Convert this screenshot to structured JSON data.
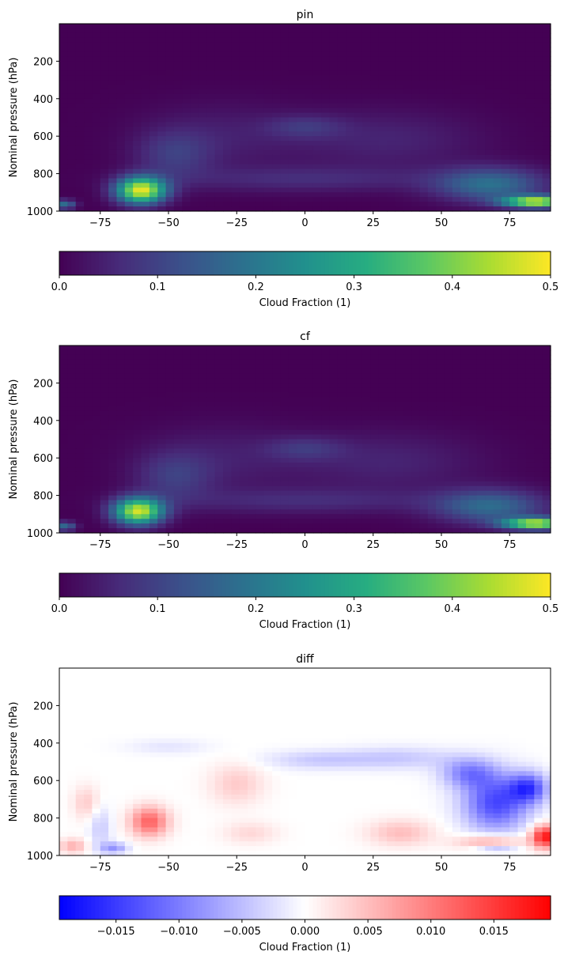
{
  "chart_data": [
    {
      "type": "heatmap",
      "title": "pin",
      "xlabel": "",
      "ylabel": "Nominal pressure (hPa)",
      "xlim": [
        -90,
        90
      ],
      "ylim": [
        1000,
        0
      ],
      "xticks": [
        -75,
        -50,
        -25,
        0,
        25,
        50,
        75
      ],
      "xtick_labels": [
        "−75",
        "−50",
        "−25",
        "0",
        "25",
        "50",
        "75"
      ],
      "yticks": [
        200,
        400,
        600,
        800,
        1000
      ],
      "ytick_labels": [
        "200",
        "400",
        "600",
        "800",
        "1000"
      ],
      "colormap": "viridis",
      "colorbar": {
        "label": "Cloud Fraction (1)",
        "range": [
          0,
          0.5
        ],
        "ticks": [
          0,
          0.1,
          0.2,
          0.3,
          0.4,
          0.5
        ],
        "tick_labels": [
          "0.0",
          "0.1",
          "0.2",
          "0.3",
          "0.4",
          "0.5"
        ]
      },
      "features": [
        {
          "lat": -60,
          "pressure": 890,
          "lat_width": 9,
          "p_width": 70,
          "value": 0.48
        },
        {
          "lat": 85,
          "pressure": 950,
          "lat_width": 12,
          "p_width": 30,
          "value": 0.46
        },
        {
          "lat": -88,
          "pressure": 965,
          "lat_width": 4,
          "p_width": 25,
          "value": 0.18
        },
        {
          "lat": 68,
          "pressure": 860,
          "lat_width": 20,
          "p_width": 90,
          "value": 0.18
        },
        {
          "lat": -48,
          "pressure": 700,
          "lat_width": 14,
          "p_width": 130,
          "value": 0.08
        },
        {
          "lat": 0,
          "pressure": 550,
          "lat_width": 14,
          "p_width": 60,
          "value": 0.06
        },
        {
          "lat": 0,
          "pressure": 830,
          "lat_width": 50,
          "p_width": 70,
          "value": 0.06
        },
        {
          "lat": 30,
          "pressure": 620,
          "lat_width": 35,
          "p_width": 160,
          "value": 0.05
        },
        {
          "lat": -30,
          "pressure": 600,
          "lat_width": 30,
          "p_width": 180,
          "value": 0.04
        }
      ]
    },
    {
      "type": "heatmap",
      "title": "cf",
      "xlabel": "",
      "ylabel": "Nominal pressure (hPa)",
      "xlim": [
        -90,
        90
      ],
      "ylim": [
        1000,
        0
      ],
      "xticks": [
        -75,
        -50,
        -25,
        0,
        25,
        50,
        75
      ],
      "xtick_labels": [
        "−75",
        "−50",
        "−25",
        "0",
        "25",
        "50",
        "75"
      ],
      "yticks": [
        200,
        400,
        600,
        800,
        1000
      ],
      "ytick_labels": [
        "200",
        "400",
        "600",
        "800",
        "1000"
      ],
      "colormap": "viridis",
      "colorbar": {
        "label": "Cloud Fraction (1)",
        "range": [
          0,
          0.5
        ],
        "ticks": [
          0,
          0.1,
          0.2,
          0.3,
          0.4,
          0.5
        ],
        "tick_labels": [
          "0.0",
          "0.1",
          "0.2",
          "0.3",
          "0.4",
          "0.5"
        ]
      },
      "features": [
        {
          "lat": -61,
          "pressure": 885,
          "lat_width": 9,
          "p_width": 70,
          "value": 0.46
        },
        {
          "lat": 85,
          "pressure": 950,
          "lat_width": 12,
          "p_width": 30,
          "value": 0.45
        },
        {
          "lat": -88,
          "pressure": 965,
          "lat_width": 4,
          "p_width": 25,
          "value": 0.17
        },
        {
          "lat": 68,
          "pressure": 860,
          "lat_width": 20,
          "p_width": 90,
          "value": 0.17
        },
        {
          "lat": -48,
          "pressure": 700,
          "lat_width": 14,
          "p_width": 130,
          "value": 0.08
        },
        {
          "lat": 0,
          "pressure": 550,
          "lat_width": 14,
          "p_width": 60,
          "value": 0.06
        },
        {
          "lat": 0,
          "pressure": 830,
          "lat_width": 50,
          "p_width": 70,
          "value": 0.06
        },
        {
          "lat": 30,
          "pressure": 620,
          "lat_width": 35,
          "p_width": 160,
          "value": 0.05
        },
        {
          "lat": -30,
          "pressure": 600,
          "lat_width": 30,
          "p_width": 180,
          "value": 0.04
        }
      ]
    },
    {
      "type": "heatmap",
      "title": "diff",
      "xlabel": "",
      "ylabel": "Nominal pressure (hPa)",
      "xlim": [
        -90,
        90
      ],
      "ylim": [
        1000,
        0
      ],
      "xticks": [
        -75,
        -50,
        -25,
        0,
        25,
        50,
        75
      ],
      "xtick_labels": [
        "−75",
        "−50",
        "−25",
        "0",
        "25",
        "50",
        "75"
      ],
      "yticks": [
        200,
        400,
        600,
        800,
        1000
      ],
      "ytick_labels": [
        "200",
        "400",
        "600",
        "800",
        "1000"
      ],
      "colormap": "bwr",
      "colorbar": {
        "label": "Cloud Fraction (1)",
        "range": [
          -0.0195,
          0.0195
        ],
        "ticks": [
          -0.015,
          -0.01,
          -0.005,
          0,
          0.005,
          0.01,
          0.015
        ],
        "tick_labels": [
          "−0.015",
          "−0.010",
          "−0.005",
          "0.000",
          "0.005",
          "0.010",
          "0.015"
        ]
      },
      "features": [
        {
          "lat": 70,
          "pressure": 720,
          "lat_width": 12,
          "p_width": 150,
          "value": -0.014
        },
        {
          "lat": 82,
          "pressure": 640,
          "lat_width": 7,
          "p_width": 80,
          "value": -0.013
        },
        {
          "lat": 60,
          "pressure": 560,
          "lat_width": 10,
          "p_width": 80,
          "value": -0.009
        },
        {
          "lat": 35,
          "pressure": 480,
          "lat_width": 20,
          "p_width": 60,
          "value": -0.004
        },
        {
          "lat": 5,
          "pressure": 490,
          "lat_width": 20,
          "p_width": 50,
          "value": -0.004
        },
        {
          "lat": -50,
          "pressure": 420,
          "lat_width": 15,
          "p_width": 40,
          "value": -0.002
        },
        {
          "lat": -75,
          "pressure": 850,
          "lat_width": 4,
          "p_width": 120,
          "value": -0.004
        },
        {
          "lat": -70,
          "pressure": 960,
          "lat_width": 5,
          "p_width": 30,
          "value": -0.008
        },
        {
          "lat": 70,
          "pressure": 960,
          "lat_width": 8,
          "p_width": 20,
          "value": -0.007
        },
        {
          "lat": -57,
          "pressure": 820,
          "lat_width": 7,
          "p_width": 80,
          "value": 0.012
        },
        {
          "lat": -85,
          "pressure": 950,
          "lat_width": 5,
          "p_width": 40,
          "value": 0.006
        },
        {
          "lat": -80,
          "pressure": 720,
          "lat_width": 5,
          "p_width": 90,
          "value": 0.004
        },
        {
          "lat": -25,
          "pressure": 620,
          "lat_width": 10,
          "p_width": 110,
          "value": 0.004
        },
        {
          "lat": -20,
          "pressure": 880,
          "lat_width": 10,
          "p_width": 60,
          "value": 0.003
        },
        {
          "lat": 35,
          "pressure": 880,
          "lat_width": 12,
          "p_width": 70,
          "value": 0.005
        },
        {
          "lat": 68,
          "pressure": 930,
          "lat_width": 12,
          "p_width": 40,
          "value": 0.008
        },
        {
          "lat": 88,
          "pressure": 900,
          "lat_width": 5,
          "p_width": 60,
          "value": 0.018
        }
      ]
    }
  ]
}
